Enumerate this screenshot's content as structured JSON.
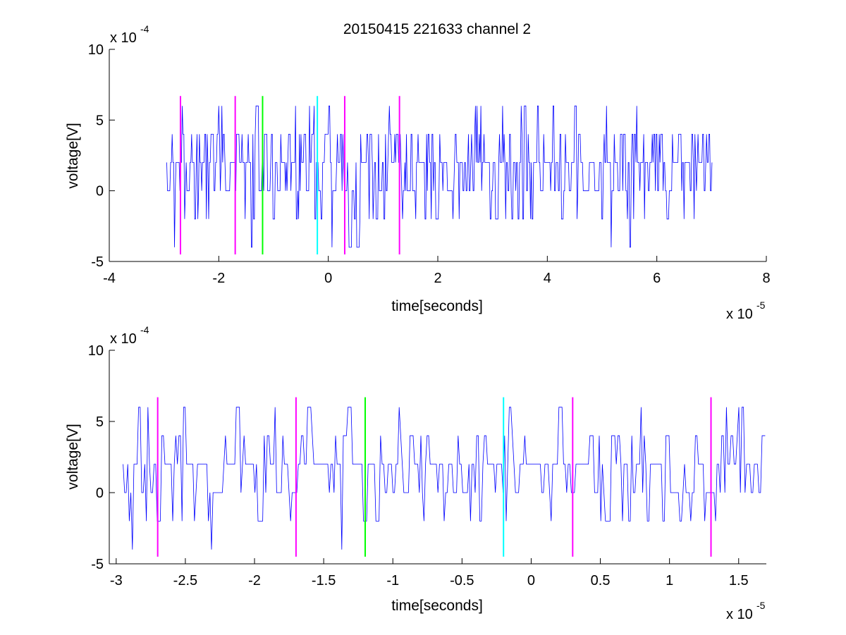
{
  "figure": {
    "title": "20150415 221633 channel 2",
    "background": "#ffffff"
  },
  "chart_data": [
    {
      "type": "line",
      "title": "20150415 221633 channel 2",
      "xlabel": "time[seconds]",
      "ylabel": "voltage[V]",
      "x_exponent_label": "x 10",
      "x_exponent_power": "-5",
      "y_exponent_label": "x 10",
      "y_exponent_power": "-4",
      "xlim": [
        -4,
        8
      ],
      "ylim": [
        -5,
        10
      ],
      "xticks": [
        -4,
        -2,
        0,
        2,
        4,
        6,
        8
      ],
      "xtick_labels": [
        "-4",
        "-2",
        "0",
        "2",
        "4",
        "6",
        "8"
      ],
      "yticks": [
        -5,
        0,
        5,
        10
      ],
      "ytick_labels": [
        "-5",
        "0",
        "5",
        "10"
      ],
      "grid": false,
      "signal": {
        "color": "#0000ff",
        "x_start": -2.95,
        "x_end": 7.02,
        "levels": [
          -4,
          -2,
          0,
          2,
          4,
          6
        ],
        "baseline": 2,
        "note_values_estimated": true
      },
      "markers": [
        {
          "x": -2.7,
          "y_min": -4.5,
          "y_max": 6.7,
          "color": "#ff00ff"
        },
        {
          "x": -1.7,
          "y_min": -4.5,
          "y_max": 6.7,
          "color": "#ff00ff"
        },
        {
          "x": -1.2,
          "y_min": -4.5,
          "y_max": 6.7,
          "color": "#00ff00"
        },
        {
          "x": -0.2,
          "y_min": -4.5,
          "y_max": 6.7,
          "color": "#00ffff"
        },
        {
          "x": 0.3,
          "y_min": -4.5,
          "y_max": 6.7,
          "color": "#ff00ff"
        },
        {
          "x": 1.3,
          "y_min": -4.5,
          "y_max": 6.7,
          "color": "#ff00ff"
        }
      ]
    },
    {
      "type": "line",
      "title": "",
      "xlabel": "time[seconds]",
      "ylabel": "voltage[V]",
      "x_exponent_label": "x 10",
      "x_exponent_power": "-5",
      "y_exponent_label": "x 10",
      "y_exponent_power": "-4",
      "xlim": [
        -3.05,
        1.7
      ],
      "ylim": [
        -5,
        10
      ],
      "xticks": [
        -3,
        -2.5,
        -2,
        -1.5,
        -1,
        -0.5,
        0,
        0.5,
        1,
        1.5
      ],
      "xtick_labels": [
        "-3",
        "-2.5",
        "-2",
        "-1.5",
        "-1",
        "-0.5",
        "0",
        "0.5",
        "1",
        "1.5"
      ],
      "yticks": [
        -5,
        0,
        5,
        10
      ],
      "ytick_labels": [
        "-5",
        "0",
        "5",
        "10"
      ],
      "grid": false,
      "signal": {
        "color": "#0000ff",
        "x_start": -2.95,
        "x_end": 1.7,
        "levels": [
          -4,
          -2,
          0,
          2,
          4,
          6
        ],
        "baseline": 2,
        "note_values_estimated": true
      },
      "markers": [
        {
          "x": -2.7,
          "y_min": -4.5,
          "y_max": 6.7,
          "color": "#ff00ff"
        },
        {
          "x": -1.7,
          "y_min": -4.5,
          "y_max": 6.7,
          "color": "#ff00ff"
        },
        {
          "x": -1.2,
          "y_min": -4.5,
          "y_max": 6.7,
          "color": "#00ff00"
        },
        {
          "x": -0.2,
          "y_min": -4.5,
          "y_max": 6.7,
          "color": "#00ffff"
        },
        {
          "x": 0.3,
          "y_min": -4.5,
          "y_max": 6.7,
          "color": "#ff00ff"
        },
        {
          "x": 1.3,
          "y_min": -4.5,
          "y_max": 6.7,
          "color": "#ff00ff"
        }
      ]
    }
  ]
}
